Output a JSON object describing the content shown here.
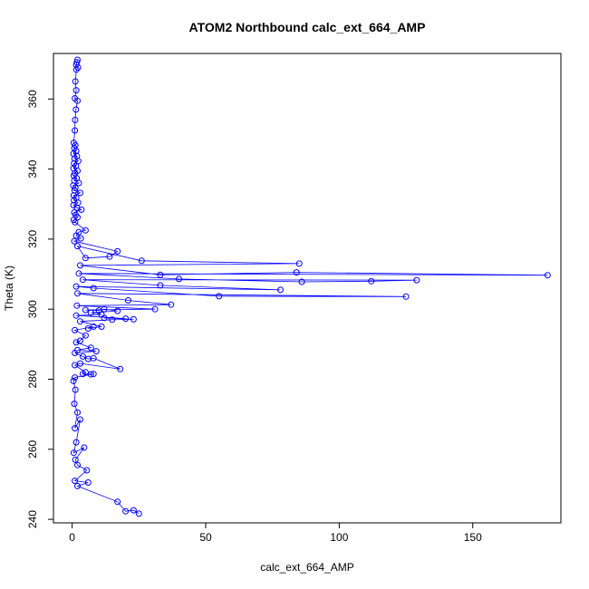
{
  "chart_data": {
    "type": "line",
    "title": "ATOM2 Northbound calc_ext_664_AMP",
    "xlabel": "calc_ext_664_AMP",
    "ylabel": "Theta (K)",
    "xlim": [
      -7,
      183
    ],
    "ylim": [
      239,
      373
    ],
    "x_ticks": [
      0,
      50,
      100,
      150
    ],
    "y_ticks": [
      240,
      260,
      280,
      300,
      320,
      340,
      360
    ],
    "x_tick_labels": [
      "0",
      "50",
      "100",
      "150"
    ],
    "y_tick_labels": [
      "240",
      "260",
      "280",
      "300",
      "320",
      "340",
      "360"
    ],
    "series_color": "#0000ff",
    "marker": "open-circle",
    "series": [
      {
        "name": "calc_ext_664_AMP",
        "points": [
          [
            2.0,
            371.2
          ],
          [
            1.8,
            370.5
          ],
          [
            1.5,
            369.8
          ],
          [
            2.2,
            369.0
          ],
          [
            1.6,
            368.4
          ],
          [
            1.2,
            365.0
          ],
          [
            1.5,
            362.5
          ],
          [
            1.0,
            360.2
          ],
          [
            2.0,
            359.5
          ],
          [
            1.4,
            357.0
          ],
          [
            1.1,
            354.0
          ],
          [
            1.0,
            351.0
          ],
          [
            0.6,
            347.5
          ],
          [
            1.2,
            346.8
          ],
          [
            0.8,
            346.0
          ],
          [
            1.5,
            345.2
          ],
          [
            0.5,
            344.4
          ],
          [
            1.8,
            343.7
          ],
          [
            0.9,
            343.0
          ],
          [
            2.3,
            342.3
          ],
          [
            0.7,
            341.6
          ],
          [
            1.4,
            340.9
          ],
          [
            0.5,
            340.2
          ],
          [
            2.0,
            339.5
          ],
          [
            1.0,
            338.8
          ],
          [
            0.6,
            338.1
          ],
          [
            1.7,
            337.4
          ],
          [
            0.8,
            336.7
          ],
          [
            2.5,
            336.0
          ],
          [
            0.4,
            335.3
          ],
          [
            1.2,
            334.6
          ],
          [
            0.9,
            333.9
          ],
          [
            3.0,
            333.2
          ],
          [
            0.6,
            332.5
          ],
          [
            1.5,
            331.8
          ],
          [
            0.7,
            331.1
          ],
          [
            2.2,
            330.4
          ],
          [
            0.5,
            329.7
          ],
          [
            1.8,
            329.0
          ],
          [
            3.5,
            328.4
          ],
          [
            0.8,
            327.6
          ],
          [
            1.3,
            326.9
          ],
          [
            2.0,
            326.2
          ],
          [
            0.6,
            325.5
          ],
          [
            1.1,
            324.8
          ],
          [
            5.0,
            322.5
          ],
          [
            2.5,
            322.0
          ],
          [
            1.5,
            321.0
          ],
          [
            3.2,
            320.2
          ],
          [
            0.8,
            319.4
          ],
          [
            17.0,
            316.5
          ],
          [
            14.0,
            315.0
          ],
          [
            5.0,
            314.6
          ],
          [
            2.0,
            318.0
          ],
          [
            26.0,
            313.8
          ],
          [
            85.0,
            313.0
          ],
          [
            3.0,
            312.5
          ],
          [
            33.0,
            309.8
          ],
          [
            84.0,
            310.5
          ],
          [
            178.0,
            309.7
          ],
          [
            2.5,
            310.2
          ],
          [
            40.0,
            308.6
          ],
          [
            86.0,
            307.8
          ],
          [
            112.0,
            308.0
          ],
          [
            129.0,
            308.3
          ],
          [
            4.0,
            308.4
          ],
          [
            33.0,
            306.8
          ],
          [
            78.0,
            305.5
          ],
          [
            1.5,
            306.5
          ],
          [
            8.0,
            306.0
          ],
          [
            55.0,
            303.7
          ],
          [
            125.0,
            303.6
          ],
          [
            2.0,
            304.5
          ],
          [
            21.0,
            302.5
          ],
          [
            37.0,
            301.3
          ],
          [
            1.8,
            301.0
          ],
          [
            31.0,
            300.0
          ],
          [
            5.0,
            299.8
          ],
          [
            10.0,
            299.6
          ],
          [
            12.0,
            300.0
          ],
          [
            17.0,
            299.5
          ],
          [
            7.0,
            299.0
          ],
          [
            11.0,
            298.5
          ],
          [
            1.5,
            298.2
          ],
          [
            20.0,
            297.3
          ],
          [
            12.0,
            297.5
          ],
          [
            23.0,
            297.1
          ],
          [
            15.0,
            297.0
          ],
          [
            3.0,
            296.5
          ],
          [
            11.0,
            295.0
          ],
          [
            6.0,
            294.5
          ],
          [
            8.0,
            295.0
          ],
          [
            1.0,
            294.0
          ],
          [
            5.0,
            292.5
          ],
          [
            3.0,
            291.0
          ],
          [
            1.5,
            290.5
          ],
          [
            7.0,
            289.0
          ],
          [
            2.0,
            288.3
          ],
          [
            9.0,
            288.0
          ],
          [
            1.0,
            287.5
          ],
          [
            4.0,
            286.5
          ],
          [
            6.0,
            285.8
          ],
          [
            8.0,
            286.0
          ],
          [
            18.0,
            282.9
          ],
          [
            3.0,
            284.5
          ],
          [
            1.0,
            284.0
          ],
          [
            5.0,
            282.0
          ],
          [
            4.0,
            281.5
          ],
          [
            7.0,
            281.4
          ],
          [
            8.0,
            281.5
          ],
          [
            1.0,
            280.5
          ],
          [
            0.5,
            279.5
          ],
          [
            1.2,
            277.0
          ],
          [
            0.8,
            273.0
          ],
          [
            2.0,
            270.5
          ],
          [
            1.0,
            266.0
          ],
          [
            3.0,
            268.5
          ],
          [
            1.5,
            262.0
          ],
          [
            0.6,
            259.0
          ],
          [
            4.5,
            260.5
          ],
          [
            1.2,
            257.0
          ],
          [
            2.0,
            255.5
          ],
          [
            5.5,
            254.0
          ],
          [
            1.0,
            251.0
          ],
          [
            6.0,
            250.5
          ],
          [
            2.0,
            249.5
          ],
          [
            17.0,
            245.0
          ],
          [
            20.0,
            242.3
          ],
          [
            23.0,
            242.6
          ],
          [
            25.0,
            241.6
          ]
        ]
      }
    ]
  }
}
